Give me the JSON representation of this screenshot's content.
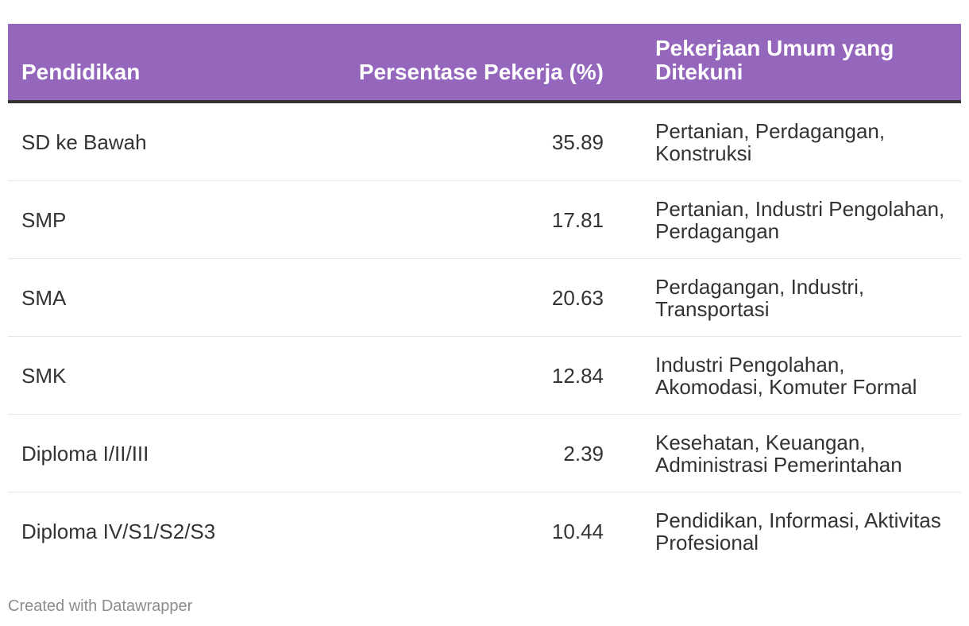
{
  "chart_data": {
    "type": "table",
    "columns": [
      "Pendidikan",
      "Persentase Pekerja (%)",
      "Pekerjaan Umum yang Ditekuni"
    ],
    "rows": [
      {
        "pendidikan": "SD ke Bawah",
        "persentase": "35.89",
        "pekerjaan": "Pertanian, Perdagangan, Konstruksi"
      },
      {
        "pendidikan": "SMP",
        "persentase": "17.81",
        "pekerjaan": "Pertanian, Industri Pengolahan, Perdagangan"
      },
      {
        "pendidikan": "SMA",
        "persentase": "20.63",
        "pekerjaan": "Perdagangan, Industri, Transportasi"
      },
      {
        "pendidikan": "SMK",
        "persentase": "12.84",
        "pekerjaan": "Industri Pengolahan, Akomodasi, Komuter Formal"
      },
      {
        "pendidikan": "Diploma I/II/III",
        "persentase": "2.39",
        "pekerjaan": "Kesehatan, Keuangan, Administrasi Pemerintahan"
      },
      {
        "pendidikan": "Diploma IV/S1/S2/S3",
        "persentase": "10.44",
        "pekerjaan": "Pendidikan, Informasi, Aktivitas Profesional"
      }
    ],
    "header_color": "#9467bd",
    "header_text_color": "#ffffff"
  },
  "footer": {
    "credit": "Created with Datawrapper"
  }
}
